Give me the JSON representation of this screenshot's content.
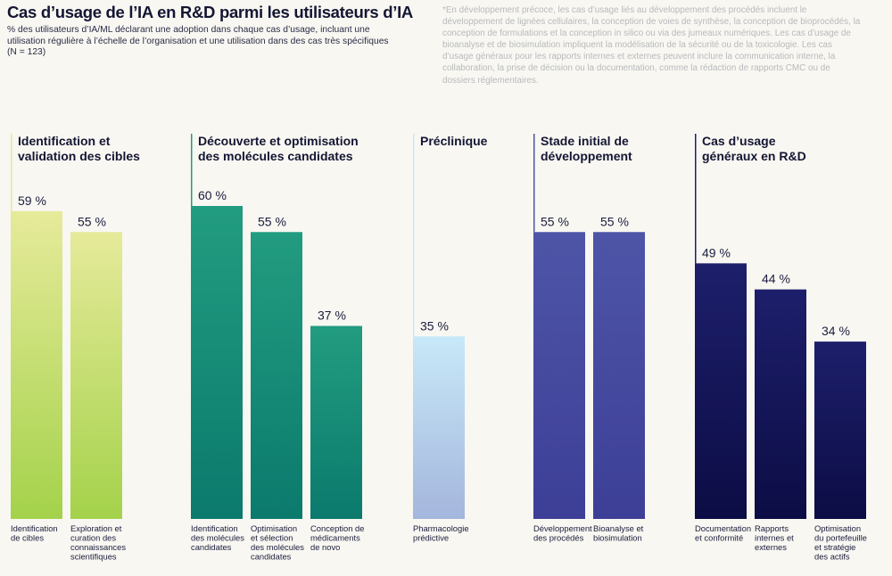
{
  "header": {
    "title": "Cas d’usage de l’IA en R&D parmi les utilisateurs d’IA",
    "subtitle": "% des utilisateurs d’IA/ML déclarant une adoption dans chaque cas d’usage, incluant une utilisation régulière à l’échelle de l’organisation et une utilisation dans des cas très spécifiques (N = 123)",
    "footnote": "*En développement précoce, les cas d’usage liés au développement des procédés incluent le développement de lignées cellulaires, la conception de voies de synthèse, la conception de bioprocédés, la conception de formulations et la conception in silico ou via des jumeaux numériques. Les cas d’usage de bioanalyse et de biosimulation impliquent la modélisation de la sécurité ou de la toxicologie. Les cas d’usage généraux pour les rapports internes et externes peuvent inclure la communication interne, la collaboration, la prise de décision ou la documentation, comme la rédaction de rapports CMC ou de dossiers réglementaires."
  },
  "chart_data": {
    "type": "bar",
    "value_suffix": " %",
    "ylim": [
      0,
      100
    ],
    "grid": false,
    "groups": [
      {
        "title": [
          "Identification et",
          "validation des cibles"
        ],
        "color_top": "#e6ea9a",
        "color_bottom": "#a4d24b",
        "bars": [
          {
            "label": [
              "Identification",
              "de cibles"
            ],
            "value": 59
          },
          {
            "label": [
              "Exploration et",
              "curation des",
              "connaissances",
              "scientifiques"
            ],
            "value": 55
          }
        ]
      },
      {
        "title": [
          "Découverte et optimisation",
          "des molécules candidates"
        ],
        "color_top": "#229c80",
        "color_bottom": "#0b7a6d",
        "bars": [
          {
            "label": [
              "Identification",
              "des molécules",
              "candidates"
            ],
            "value": 60
          },
          {
            "label": [
              "Optimisation",
              "et sélection",
              "des molécules",
              "candidates"
            ],
            "value": 55
          },
          {
            "label": [
              "Conception de",
              "médicaments",
              "de novo"
            ],
            "value": 37
          }
        ]
      },
      {
        "title": [
          "Préclinique"
        ],
        "color_top": "#c8e9f8",
        "color_bottom": "#a4b6dc",
        "bars": [
          {
            "label": [
              "Pharmacologie",
              "prédictive"
            ],
            "value": 35
          }
        ]
      },
      {
        "title": [
          "Stade initial de",
          "développement"
        ],
        "color_top": "#4e55a7",
        "color_bottom": "#3d3f97",
        "bars": [
          {
            "label": [
              "Développement",
              "des procédés"
            ],
            "value": 55
          },
          {
            "label": [
              "Bioanalyse et",
              "biosimulation"
            ],
            "value": 55
          }
        ]
      },
      {
        "title": [
          "Cas d’usage",
          "généraux en R&D"
        ],
        "color_top": "#1d1f6b",
        "color_bottom": "#0c0c45",
        "bars": [
          {
            "label": [
              "Documentation",
              "et conformité"
            ],
            "value": 49
          },
          {
            "label": [
              "Rapports",
              "internes et",
              "externes"
            ],
            "value": 44
          },
          {
            "label": [
              "Optimisation",
              "du portefeuille",
              "et stratégie",
              "des actifs"
            ],
            "value": 34
          }
        ]
      }
    ]
  }
}
